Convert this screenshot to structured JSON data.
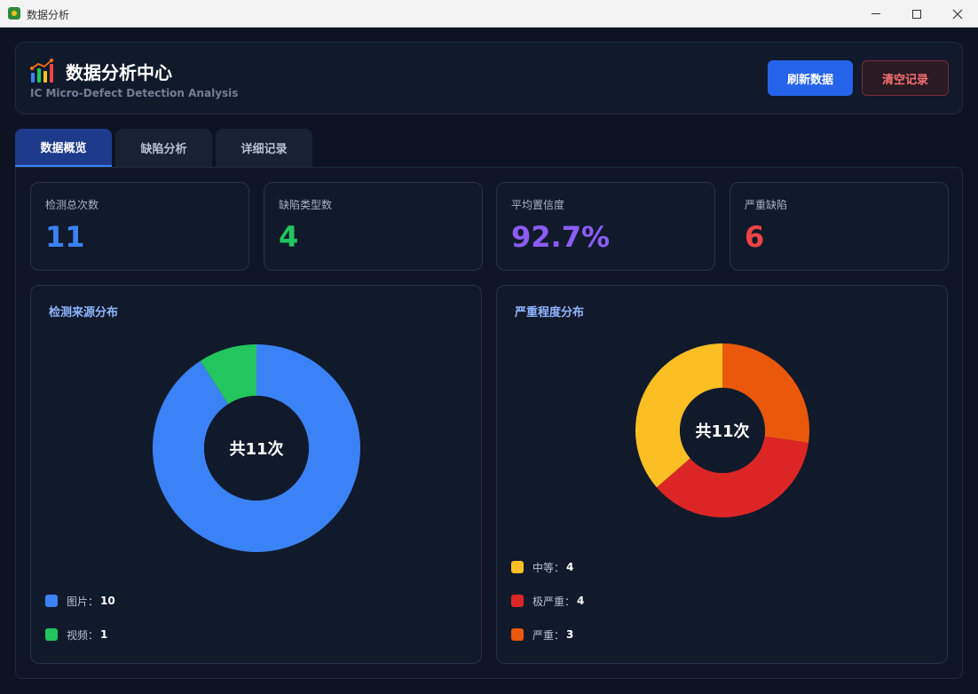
{
  "window": {
    "title": "数据分析"
  },
  "header": {
    "title": "数据分析中心",
    "subtitle": "IC Micro-Defect Detection Analysis",
    "refresh_label": "刷新数据",
    "clear_label": "清空记录"
  },
  "tabs": [
    {
      "label": "数据概览",
      "active": true
    },
    {
      "label": "缺陷分析",
      "active": false
    },
    {
      "label": "详细记录",
      "active": false
    }
  ],
  "stats": [
    {
      "label": "检测总次数",
      "value": "11",
      "color": "#3b82f6"
    },
    {
      "label": "缺陷类型数",
      "value": "4",
      "color": "#22c55e"
    },
    {
      "label": "平均置信度",
      "value": "92.7%",
      "color": "#8b5cf6"
    },
    {
      "label": "严重缺陷",
      "value": "6",
      "color": "#ef4444"
    }
  ],
  "chart_data": [
    {
      "type": "pie",
      "title": "检测来源分布",
      "center_label": "共11次",
      "categories": [
        "图片",
        "视频"
      ],
      "values": [
        10,
        1
      ],
      "colors": [
        "#3b82f6",
        "#22c55e"
      ],
      "legend_labels": [
        "图片：",
        "视频："
      ],
      "legend_values": [
        "10",
        "1"
      ]
    },
    {
      "type": "pie",
      "title": "严重程度分布",
      "center_label": "共11次",
      "categories": [
        "严重",
        "极严重",
        "中等"
      ],
      "values": [
        3,
        4,
        4
      ],
      "colors": [
        "#ea580c",
        "#dc2626",
        "#fbbf24"
      ],
      "legend_labels": [
        "中等：",
        "极严重：",
        "严重："
      ],
      "legend_values": [
        "4",
        "4",
        "3"
      ],
      "legend_colors": [
        "#fbbf24",
        "#dc2626",
        "#ea580c"
      ]
    }
  ]
}
